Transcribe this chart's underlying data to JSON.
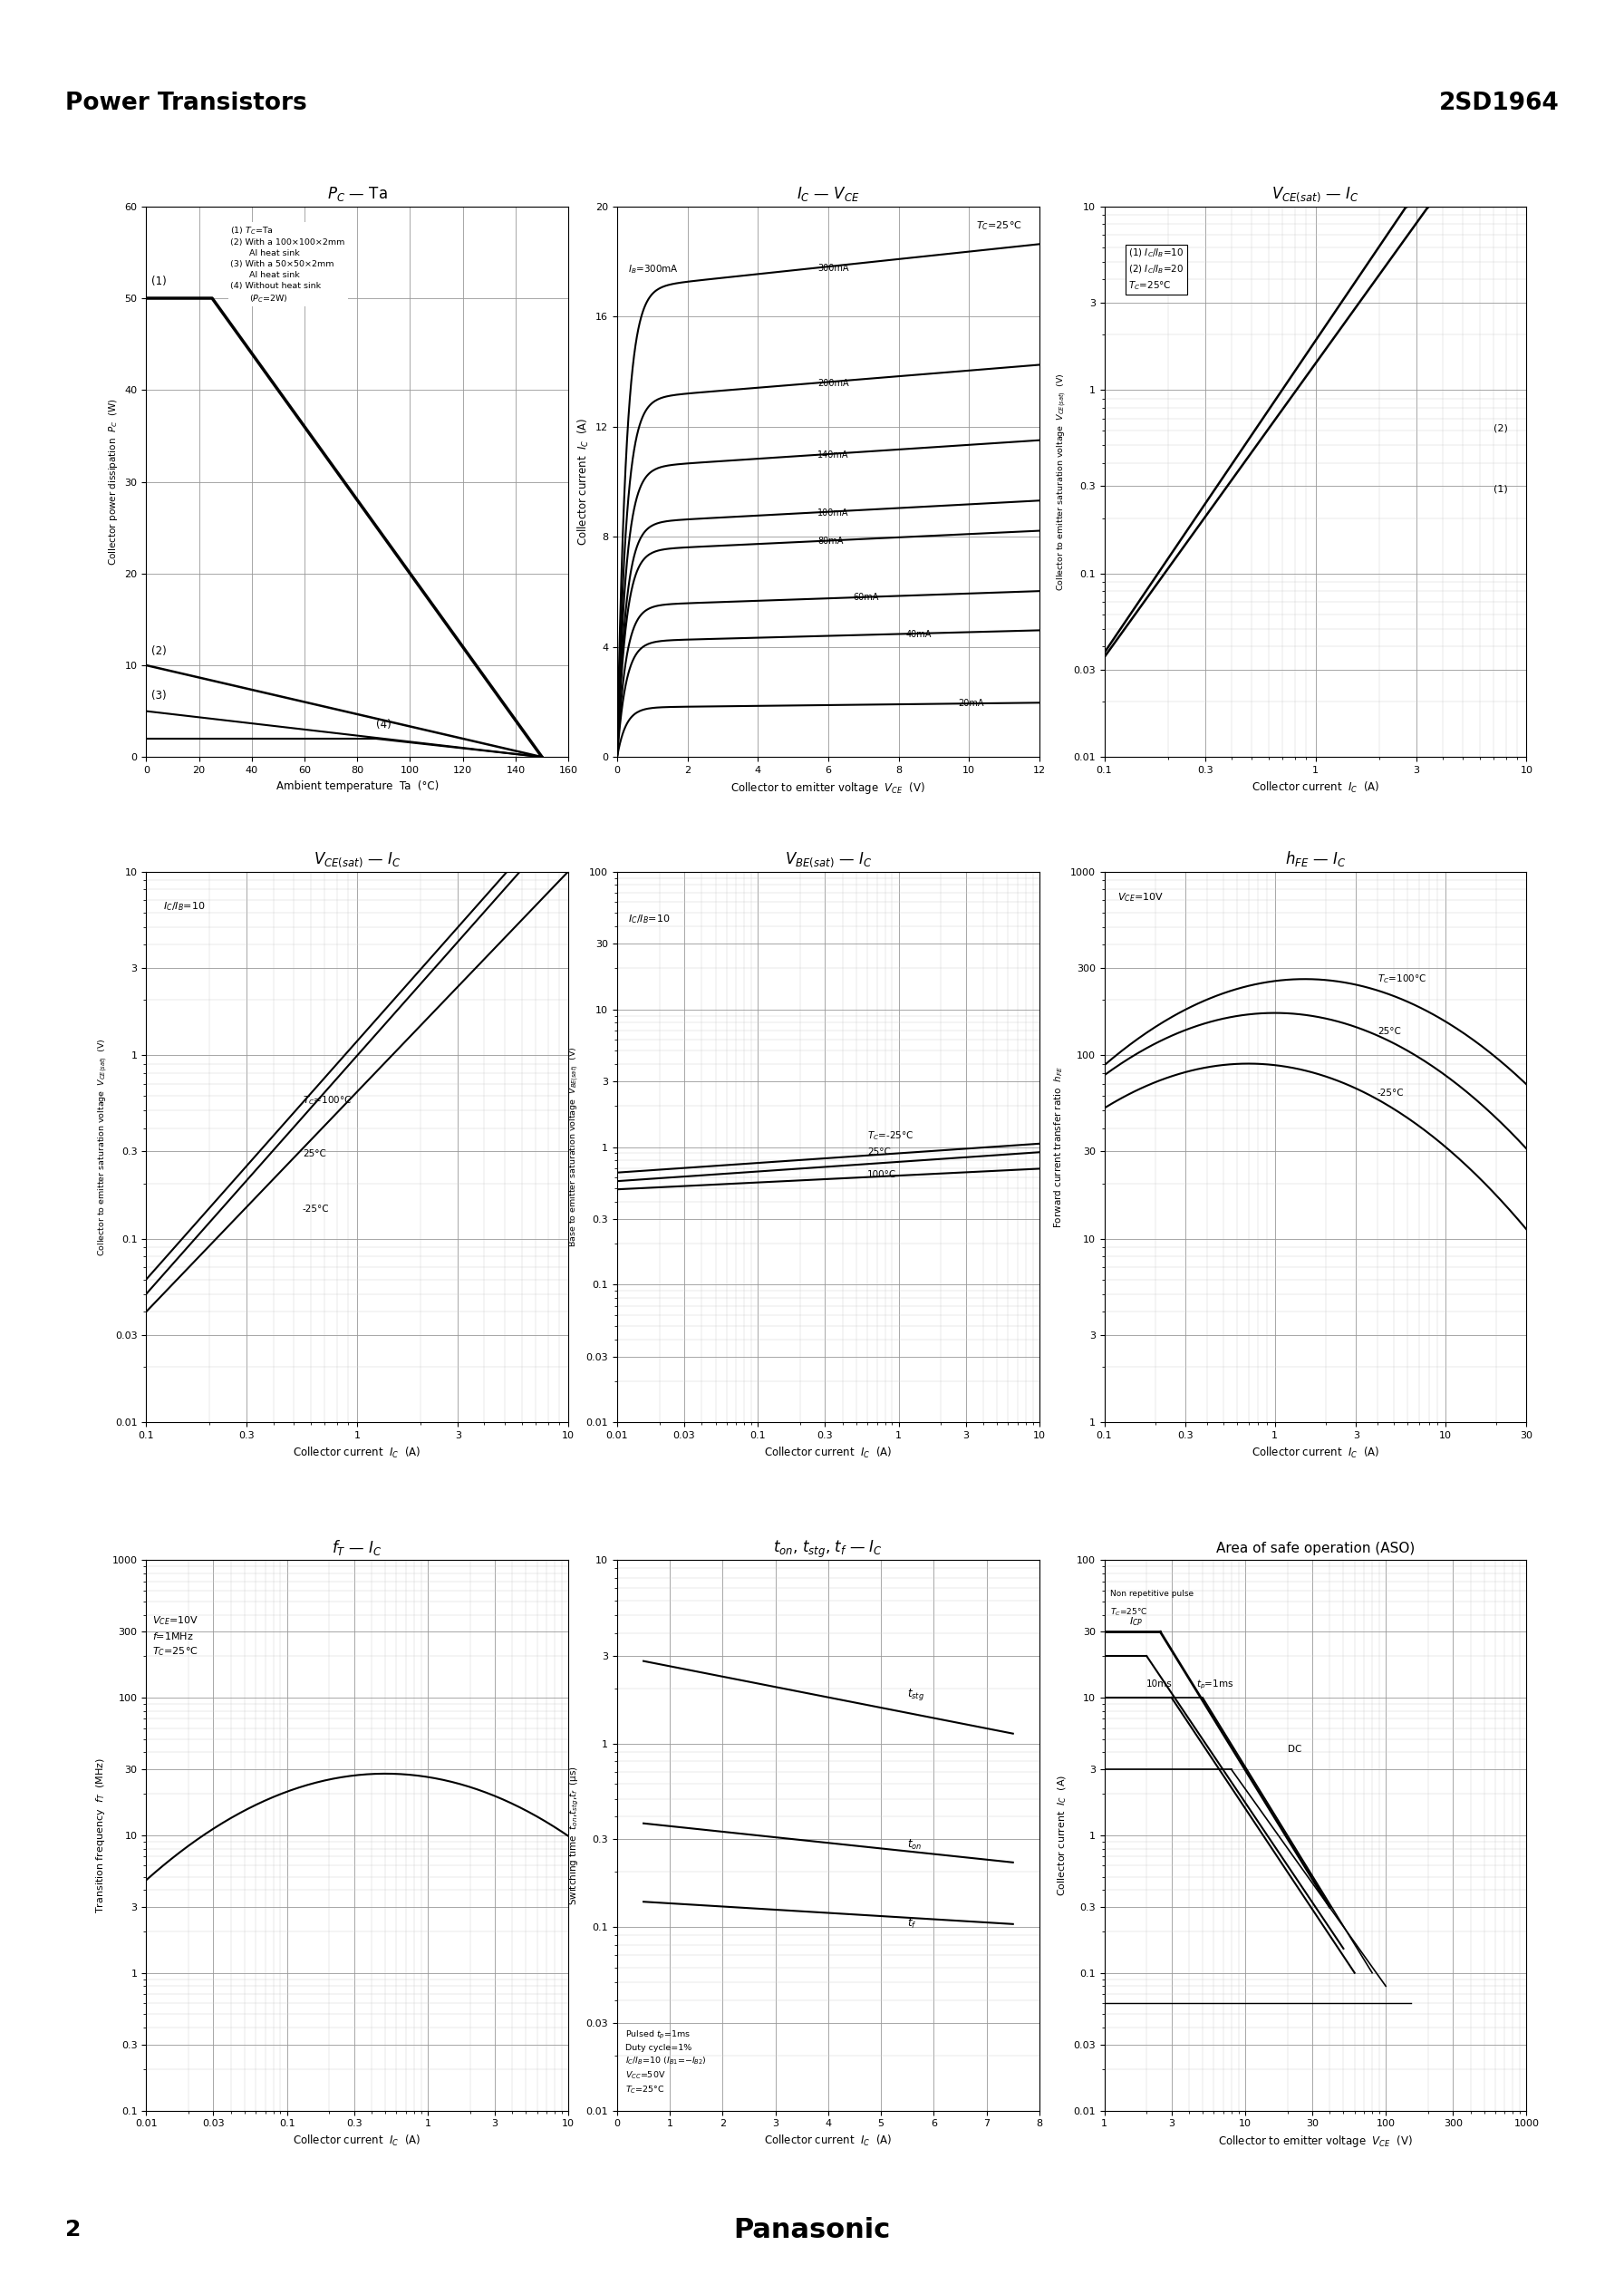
{
  "page_title_left": "Power Transistors",
  "page_title_right": "2SD1964",
  "page_number": "2",
  "page_brand": "Panasonic",
  "bg_color": "#ffffff"
}
